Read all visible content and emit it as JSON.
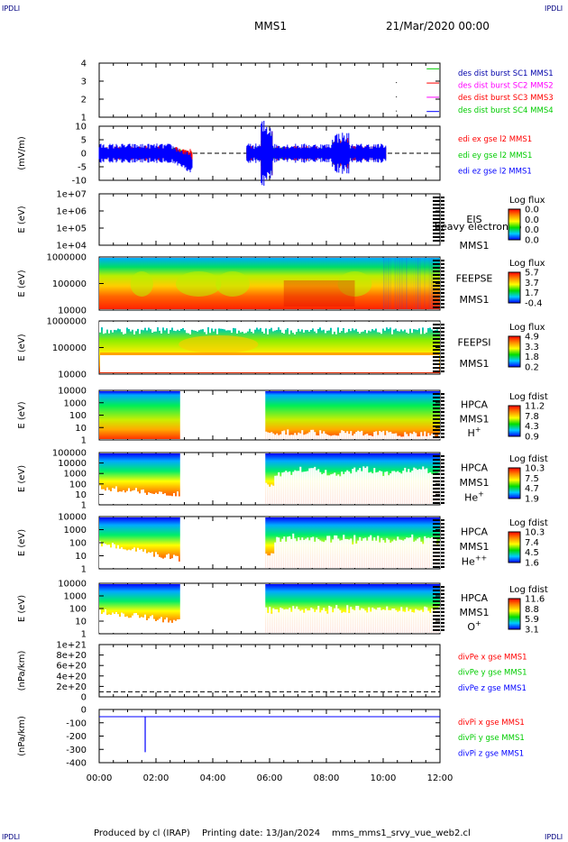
{
  "header": {
    "corner_left_top": "IPDLI",
    "corner_right_top": "IPDLI",
    "spacecraft": "MMS1",
    "datetime": "21/Mar/2020 00:00",
    "corner_left_bottom": "IPDLI",
    "corner_right_bottom": "IPDLI"
  },
  "footer": {
    "produced": "Produced by cl (IRAP)",
    "printing": "Printing date: 13/Jan/2024",
    "file": "mms_mms1_srvy_vue_web2.cl"
  },
  "x_axis": {
    "ticks": [
      "00:00",
      "02:00",
      "04:00",
      "06:00",
      "08:00",
      "10:00",
      "12:00"
    ],
    "hour_range": [
      0,
      12
    ]
  },
  "colors": {
    "red": "#ff0000",
    "green": "#00cc00",
    "blue": "#0000ff",
    "magenta": "#ff00ff",
    "navy": "#000080"
  },
  "chart_data": [
    {
      "type": "line",
      "id": "burst",
      "yticks": [
        "1",
        "2",
        "3",
        "4"
      ],
      "ylim": [
        0.6,
        4.4
      ],
      "legend": [
        {
          "text": "des dist burst SC1 MMS1",
          "color": "#0000aa"
        },
        {
          "text": "des dist burst SC2 MMS2",
          "color": "#ff00ff"
        },
        {
          "text": "des dist burst SC3 MMS3",
          "color": "#ff0000"
        },
        {
          "text": "des dist burst SC4 MMS4",
          "color": "#00cc00"
        }
      ],
      "series": [
        {
          "name": "des dist burst SC1 MMS1",
          "color": "#0000ff",
          "level": 1,
          "x": [
            11.5,
            12
          ]
        },
        {
          "name": "des dist burst SC2 MMS2",
          "color": "#ff00ff",
          "level": 2,
          "x": [
            11.5,
            12
          ]
        },
        {
          "name": "des dist burst SC3 MMS3",
          "color": "#ff0000",
          "level": 3,
          "x": [
            11.5,
            12
          ]
        },
        {
          "name": "des dist burst SC4 MMS4",
          "color": "#00cc00",
          "level": 4,
          "x": [
            11.5,
            12
          ]
        }
      ]
    },
    {
      "type": "line",
      "id": "efield",
      "ylabel": "(mV/m)",
      "yticks": [
        "-10",
        "-5",
        "0",
        "5",
        "10"
      ],
      "ylim": [
        -12,
        12
      ],
      "legend": [
        {
          "text": "edi ex gse l2 MMS1",
          "color": "#ff0000"
        },
        {
          "text": "edi ey gse l2 MMS1",
          "color": "#00cc00"
        },
        {
          "text": "edi ez gse l2 MMS1",
          "color": "#0000ff"
        }
      ],
      "data_intervals_hours": [
        [
          0,
          3.3
        ],
        [
          5.2,
          10.1
        ]
      ],
      "spike": {
        "x": 5.85,
        "ymin": -10,
        "ymax": 8
      }
    },
    {
      "type": "heatmap",
      "id": "eis",
      "ylabel": "E (eV)",
      "yticks": [
        "1e+04",
        "1e+05",
        "1e+06",
        "1e+07"
      ],
      "label_lines": [
        "EIS",
        "MMS1"
      ],
      "overlap_text": "heavy electron to",
      "cbar_title": "Log flux",
      "cbar_ticks": [
        "0.0",
        "0.0",
        "0.0",
        "0.0"
      ],
      "empty": true
    },
    {
      "type": "heatmap",
      "id": "feepse",
      "ylabel": "E (eV)",
      "yticks": [
        "10000",
        "100000",
        "1000000"
      ],
      "label_lines": [
        "FEEPSE",
        "MMS1"
      ],
      "cbar_title": "Log flux",
      "cbar_ticks": [
        "5.7",
        "3.7",
        "1.7",
        "-0.4"
      ],
      "data_hours": [
        0,
        12
      ]
    },
    {
      "type": "heatmap",
      "id": "feepsi",
      "ylabel": "E (eV)",
      "yticks": [
        "10000",
        "100000",
        "1000000"
      ],
      "label_lines": [
        "FEEPSI",
        "MMS1"
      ],
      "cbar_title": "Log flux",
      "cbar_ticks": [
        "4.9",
        "3.3",
        "1.8",
        "0.2"
      ],
      "data_hours": [
        0,
        12
      ]
    },
    {
      "type": "heatmap",
      "id": "hpca_h",
      "ylabel": "E (eV)",
      "yticks": [
        "1",
        "10",
        "100",
        "1000",
        "10000"
      ],
      "label_lines": [
        "HPCA",
        "MMS1",
        "H+"
      ],
      "cbar_title": "Log fdist",
      "cbar_ticks": [
        "11.2",
        "7.8",
        "4.3",
        "0.9"
      ],
      "data_intervals_hours": [
        [
          0,
          2.85
        ],
        [
          5.85,
          12
        ]
      ]
    },
    {
      "type": "heatmap",
      "id": "hpca_he",
      "ylabel": "E (eV)",
      "yticks": [
        "1",
        "10",
        "100",
        "1000",
        "10000",
        "100000"
      ],
      "label_lines": [
        "HPCA",
        "MMS1",
        "He+"
      ],
      "cbar_title": "Log fdist",
      "cbar_ticks": [
        "10.3",
        "7.5",
        "4.7",
        "1.9"
      ],
      "data_intervals_hours": [
        [
          0,
          2.85
        ],
        [
          5.85,
          12
        ]
      ]
    },
    {
      "type": "heatmap",
      "id": "hpca_hepp",
      "ylabel": "E (eV)",
      "yticks": [
        "1",
        "10",
        "100",
        "1000",
        "10000"
      ],
      "label_lines": [
        "HPCA",
        "MMS1",
        "He++"
      ],
      "cbar_title": "Log fdist",
      "cbar_ticks": [
        "10.3",
        "7.4",
        "4.5",
        "1.6"
      ],
      "data_intervals_hours": [
        [
          0,
          2.85
        ],
        [
          5.85,
          12
        ]
      ]
    },
    {
      "type": "heatmap",
      "id": "hpca_o",
      "ylabel": "E (eV)",
      "yticks": [
        "1",
        "10",
        "100",
        "1000",
        "10000"
      ],
      "label_lines": [
        "HPCA",
        "MMS1",
        "O+"
      ],
      "cbar_title": "Log fdist",
      "cbar_ticks": [
        "11.6",
        "8.8",
        "5.9",
        "3.1"
      ],
      "data_intervals_hours": [
        [
          0,
          2.85
        ],
        [
          5.85,
          12
        ]
      ]
    },
    {
      "type": "line",
      "id": "divpe",
      "ylabel": "(nPa/km)",
      "yticks": [
        "0",
        "2e+20",
        "4e+20",
        "6e+20",
        "8e+20",
        "1e+21"
      ],
      "ylim": [
        -5e+19,
        1.05e+21
      ],
      "legend": [
        {
          "text": "divPe x gse MMS1",
          "color": "#ff0000"
        },
        {
          "text": "divPe y gse MMS1",
          "color": "#00cc00"
        },
        {
          "text": "divPe z gse MMS1",
          "color": "#0000ff"
        }
      ],
      "zero_line": true
    },
    {
      "type": "line",
      "id": "divpi",
      "ylabel": "(nPa/km)",
      "yticks": [
        "-400",
        "-300",
        "-200",
        "-100",
        "0"
      ],
      "ylim": [
        -420,
        20
      ],
      "legend": [
        {
          "text": "divPi x gse MMS1",
          "color": "#ff0000"
        },
        {
          "text": "divPi y gse MMS1",
          "color": "#00cc00"
        },
        {
          "text": "divPi z gse MMS1",
          "color": "#0000ff"
        }
      ],
      "zero_line": true,
      "series": [
        {
          "name": "divPi z gse MMS1",
          "color": "#0000ff",
          "x": [
            1.62,
            1.62
          ],
          "y": [
            0,
            -350
          ]
        }
      ],
      "flat_intervals_hours": [
        [
          0,
          9.2
        ],
        [
          9.2,
          12
        ]
      ]
    }
  ]
}
